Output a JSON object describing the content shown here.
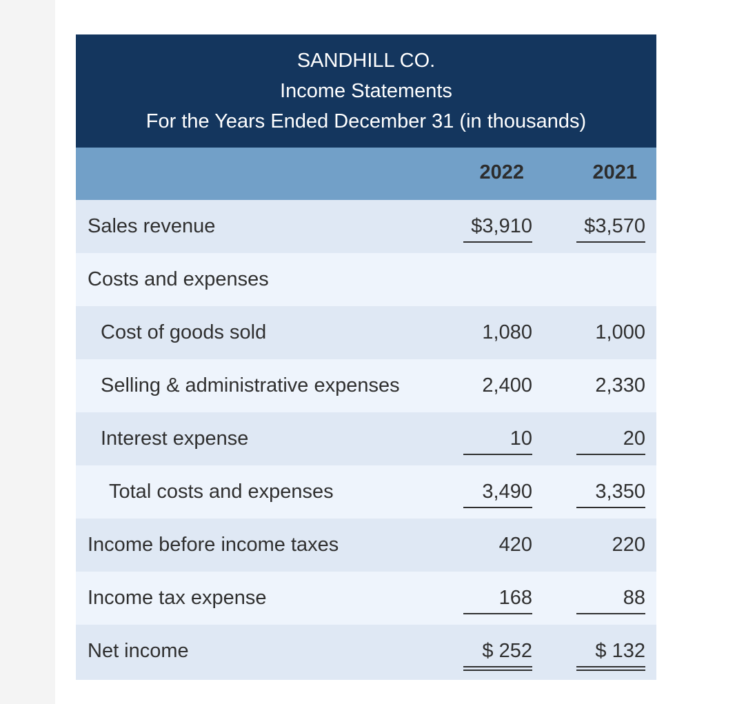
{
  "header": {
    "company": "SANDHILL CO.",
    "statement": "Income Statements",
    "period": "For the Years Ended December 31 (in thousands)"
  },
  "columns": [
    "2022",
    "2021"
  ],
  "rows": [
    {
      "label": "Sales revenue",
      "v2022": "$3,910",
      "v2021": "$3,570"
    },
    {
      "label": "Costs and expenses",
      "v2022": "",
      "v2021": ""
    },
    {
      "label": "Cost of goods sold",
      "v2022": "1,080",
      "v2021": "1,000"
    },
    {
      "label": "Selling & administrative expenses",
      "v2022": "2,400",
      "v2021": "2,330"
    },
    {
      "label": "Interest expense",
      "v2022": "10",
      "v2021": "20"
    },
    {
      "label": "Total costs and expenses",
      "v2022": "3,490",
      "v2021": "3,350"
    },
    {
      "label": "Income before income taxes",
      "v2022": "420",
      "v2021": "220"
    },
    {
      "label": "Income tax expense",
      "v2022": "168",
      "v2021": "88"
    },
    {
      "label": "Net income",
      "v2022": "$ 252",
      "v2021": "$ 132"
    }
  ]
}
